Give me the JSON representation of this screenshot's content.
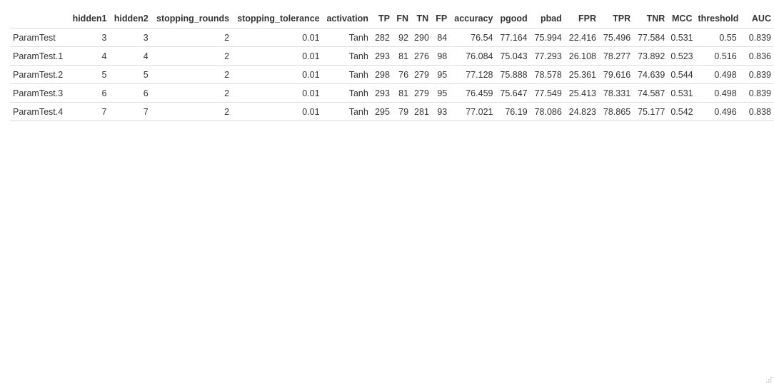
{
  "table": {
    "columns": [
      "",
      "hidden1",
      "hidden2",
      "stopping_rounds",
      "stopping_tolerance",
      "activation",
      "TP",
      "FN",
      "TN",
      "FP",
      "accuracy",
      "pgood",
      "pbad",
      "FPR",
      "TPR",
      "TNR",
      "MCC",
      "threshold",
      "AUC"
    ],
    "rows": [
      [
        "ParamTest",
        "3",
        "3",
        "2",
        "0.01",
        "Tanh",
        "282",
        "92",
        "290",
        "84",
        "76.54",
        "77.164",
        "75.994",
        "22.416",
        "75.496",
        "77.584",
        "0.531",
        "0.55",
        "0.839"
      ],
      [
        "ParamTest.1",
        "4",
        "4",
        "2",
        "0.01",
        "Tanh",
        "293",
        "81",
        "276",
        "98",
        "76.084",
        "75.043",
        "77.293",
        "26.108",
        "78.277",
        "73.892",
        "0.523",
        "0.516",
        "0.836"
      ],
      [
        "ParamTest.2",
        "5",
        "5",
        "2",
        "0.01",
        "Tanh",
        "298",
        "76",
        "279",
        "95",
        "77.128",
        "75.888",
        "78.578",
        "25.361",
        "79.616",
        "74.639",
        "0.544",
        "0.498",
        "0.839"
      ],
      [
        "ParamTest.3",
        "6",
        "6",
        "2",
        "0.01",
        "Tanh",
        "293",
        "81",
        "279",
        "95",
        "76.459",
        "75.647",
        "77.549",
        "25.413",
        "78.331",
        "74.587",
        "0.531",
        "0.498",
        "0.839"
      ],
      [
        "ParamTest.4",
        "7",
        "7",
        "2",
        "0.01",
        "Tanh",
        "295",
        "79",
        "281",
        "93",
        "77.021",
        "76.19",
        "78.086",
        "24.823",
        "78.865",
        "75.177",
        "0.542",
        "0.496",
        "0.838"
      ]
    ]
  },
  "icons": {
    "resize": "resize-grip-icon"
  }
}
